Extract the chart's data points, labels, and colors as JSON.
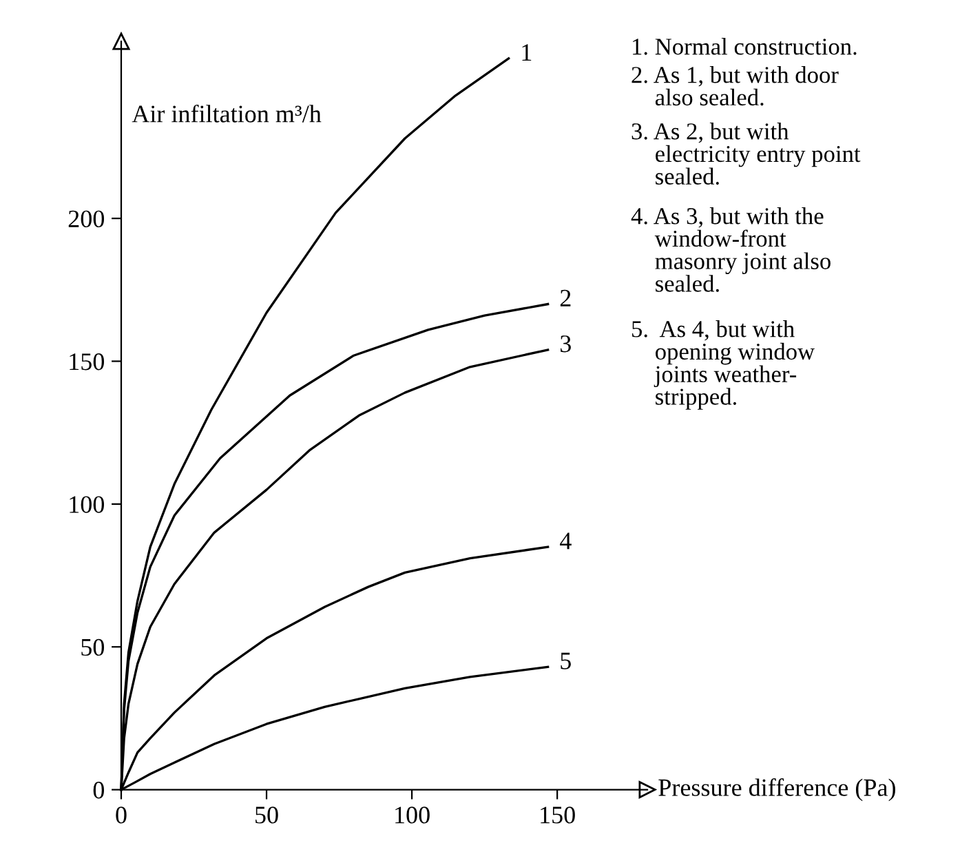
{
  "chart_data": {
    "type": "line",
    "xlabel": "Pressure difference (Pa)",
    "ylabel": "Air infiltation m³/h",
    "xlim": [
      0,
      181
    ],
    "ylim": [
      0,
      262
    ],
    "xticks": [
      0,
      50,
      100,
      150
    ],
    "yticks": [
      0,
      50,
      100,
      150,
      200
    ],
    "grid": false,
    "legend": false,
    "marker": "none",
    "line_style": "solid",
    "series": [
      {
        "name": "1",
        "color": "#000000",
        "x": [
          0,
          1,
          2.5,
          5.6,
          10,
          18.3,
          31,
          50,
          73.8,
          97.6,
          115,
          133.3
        ],
        "values": [
          0,
          30,
          48,
          66,
          85,
          107,
          133,
          167,
          202,
          228,
          243,
          256
        ]
      },
      {
        "name": "2",
        "color": "#000000",
        "x": [
          0,
          1,
          2.5,
          5.6,
          10,
          18.3,
          34,
          58,
          80,
          105.6,
          125,
          146.8
        ],
        "values": [
          0,
          28,
          45,
          62,
          78,
          96,
          116,
          138,
          152,
          161,
          166,
          170
        ]
      },
      {
        "name": "3",
        "color": "#000000",
        "x": [
          0,
          1,
          2.5,
          5.6,
          10,
          18.3,
          32,
          50,
          65,
          81.8,
          97.6,
          120,
          146.8
        ],
        "values": [
          0,
          18,
          30,
          44,
          57,
          72,
          90,
          105,
          119,
          131,
          139,
          148,
          154
        ]
      },
      {
        "name": "4",
        "color": "#000000",
        "x": [
          0,
          2.5,
          5.6,
          10,
          18.3,
          32,
          50,
          70,
          85,
          97.6,
          120,
          146.8
        ],
        "values": [
          0,
          6,
          13,
          18,
          27,
          40,
          53,
          64,
          71,
          76,
          81,
          85
        ]
      },
      {
        "name": "5",
        "color": "#000000",
        "x": [
          0,
          5,
          10,
          18.3,
          32,
          50,
          70,
          97.6,
          120,
          146.8
        ],
        "values": [
          0,
          2.7,
          5.5,
          9.5,
          16,
          23,
          29,
          35.5,
          39.5,
          43
        ]
      }
    ],
    "annotations": [
      "1. Normal construction.",
      "2. As 1, but with door\n    also sealed.",
      "3. As 2, but with\n    electricity entry point\n    sealed.",
      "4. As 3, but with the\n    window-front\n    masonry joint also\n    sealed.",
      "5.  As 4, but with\n    opening window\n    joints weather-\n    stripped."
    ]
  }
}
